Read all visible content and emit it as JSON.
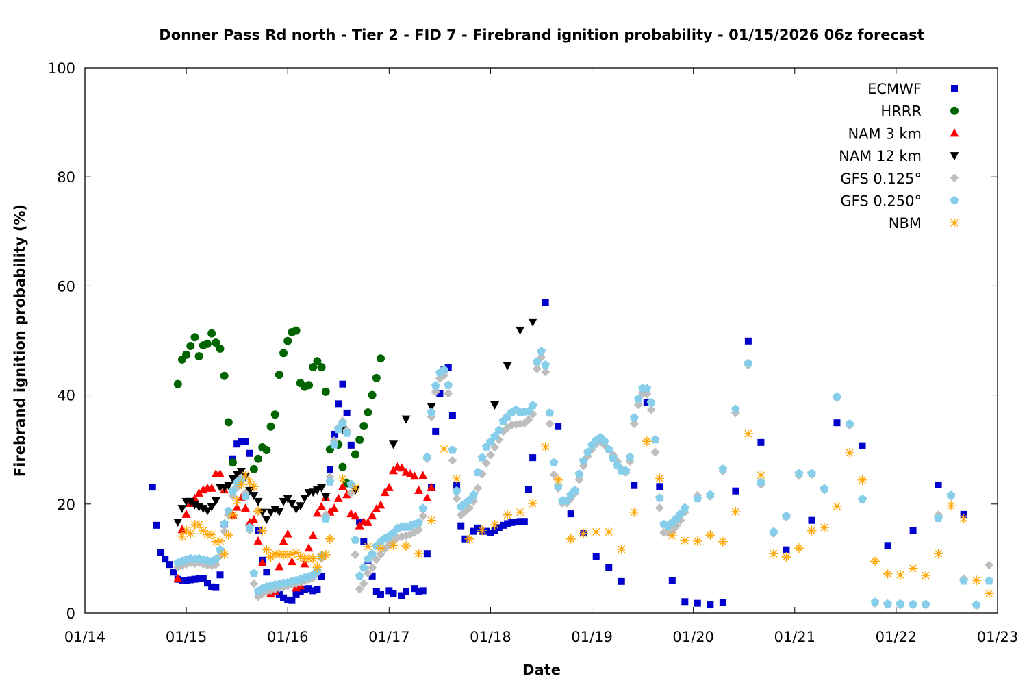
{
  "chart_data": {
    "type": "scatter",
    "title": "Donner Pass Rd north - Tier 2 - FID 7 - Firebrand ignition probability - 01/15/2026 06z forecast",
    "xlabel": "Date",
    "ylabel": "Firebrand ignition probability (%)",
    "xlim": [
      "01/14 00:00",
      "01/23 00:00"
    ],
    "ylim": [
      0,
      100
    ],
    "x_ticks": [
      "01/14",
      "01/15",
      "01/16",
      "01/17",
      "01/18",
      "01/19",
      "01/20",
      "01/21",
      "01/22",
      "01/23"
    ],
    "y_ticks": [
      0,
      20,
      40,
      60,
      80,
      100
    ],
    "grid": false,
    "legend_position": "top-right",
    "series": [
      {
        "name": "ECMWF",
        "marker": "square",
        "color": "#0000cc",
        "segments": [
          {
            "start": "01/14 16:00",
            "step_hours": 1,
            "values": [
              23.1,
              16.1,
              11.1,
              9.9,
              8.9,
              7.5,
              6.2,
              5.9,
              6.0,
              6.1,
              6.2,
              6.3,
              6.4,
              5.5,
              4.8,
              4.7,
              7.0,
              16.3,
              null,
              28.3,
              31.0,
              31.4,
              31.5,
              29.3,
              null,
              15.1,
              9.7,
              7.5,
              3.8,
              4.0,
              3.4,
              2.8,
              2.4,
              2.3,
              3.4,
              4.0,
              4.4,
              4.5,
              4.1,
              4.3,
              6.7,
              null,
              26.3,
              32.8,
              38.4,
              42.0,
              36.7,
              30.8,
              null,
              16.7,
              13.1,
              9.7,
              6.8,
              4.0,
              3.4,
              null,
              4.1,
              3.6,
              null,
              3.2,
              3.9,
              null,
              4.5,
              4.0,
              4.1,
              10.9,
              23.0,
              33.3,
              40.2,
              44.6,
              45.1,
              36.3,
              23.4,
              16.0,
              13.6,
              null,
              15.0,
              15.6,
              15.0,
              15.0,
              14.7,
              15.1,
              15.7,
              16.1,
              16.4,
              16.6,
              16.7,
              16.8,
              16.8,
              22.7,
              28.5
            ]
          },
          {
            "start": "01/18 13:00",
            "step_hours": 3,
            "values": [
              57.0,
              34.2,
              18.2,
              14.7,
              10.3,
              8.4,
              5.8,
              23.4,
              38.7,
              23.2,
              5.9,
              2.1,
              1.8,
              1.5,
              1.9,
              22.4,
              49.9,
              31.3
            ]
          },
          {
            "start": "01/20 22:00",
            "step_hours": 6,
            "values": [
              11.6,
              17.0,
              34.9,
              30.7,
              12.4,
              15.1,
              23.5,
              18.1
            ]
          }
        ]
      },
      {
        "name": "HRRR",
        "marker": "circle",
        "color": "#006400",
        "segments": [
          {
            "start": "01/14 22:00",
            "step_hours": 1,
            "values": [
              42.0,
              46.5,
              47.4,
              49.0,
              50.6,
              47.1,
              49.1,
              49.4,
              51.3,
              49.6,
              48.5,
              43.5,
              35.0,
              27.6,
              null,
              null,
              null,
              null,
              26.4,
              28.3,
              30.4,
              29.9,
              34.2,
              36.4,
              43.7,
              47.7,
              49.9,
              51.5,
              51.8,
              42.2,
              41.5,
              41.8,
              45.1,
              46.2,
              45.1,
              40.6,
              30.0,
              null,
              30.9,
              26.8,
              23.8,
              null,
              29.1,
              31.8,
              34.3,
              36.8,
              40.0,
              43.1,
              46.7
            ]
          }
        ]
      },
      {
        "name": "NAM 3 km",
        "marker": "triangle-up",
        "color": "#ff0000",
        "segments": [
          {
            "start": "01/14 22:00",
            "step_hours": 1,
            "values": [
              6.3,
              15.3,
              18.1,
              20.1,
              21.0,
              22.0,
              22.6,
              22.9,
              22.9,
              25.5,
              25.5,
              22.6,
              18.5,
              18.0,
              19.4,
              21.1,
              19.2,
              16.6,
              17.1,
              13.2,
              9.2,
              null,
              3.5,
              4.0,
              8.5,
              13.1,
              14.5,
              9.4,
              4.6,
              5.0,
              9.0,
              11.9,
              14.2,
              18.3,
              19.5,
              21.2,
              18.5,
              19.2,
              21.0,
              23.2,
              21.7,
              18.2,
              17.8,
              16.0,
              16.7,
              16.6,
              17.8,
              19.1,
              19.8,
              22.1,
              23.0,
              26.1,
              26.8,
              26.6,
              25.8,
              25.5,
              25.1,
              22.5,
              25.2,
              21.1,
              23.0
            ]
          }
        ]
      },
      {
        "name": "NAM 12 km",
        "marker": "triangle-down",
        "color": "#000000",
        "segments": [
          {
            "start": "01/14 22:00",
            "step_hours": 1,
            "values": [
              16.7,
              19.2,
              20.5,
              20.5,
              19.9,
              19.5,
              19.2,
              18.8,
              19.5,
              20.6,
              23.1,
              23.0,
              23.4,
              24.7,
              25.5,
              26.0,
              25.1,
              22.5,
              21.6,
              20.5,
              18.5,
              17.2,
              18.5,
              19.1,
              18.6,
              20.5,
              21.0,
              20.1,
              19.1,
              19.7,
              21.1,
              22.1,
              22.2,
              22.6,
              23.0,
              21.4
            ]
          },
          {
            "start": "01/16 13:00",
            "step_hours": 3,
            "values": [
              33.7,
              22.6,
              null,
              null,
              31.0,
              35.6,
              null,
              37.9,
              null,
              null,
              null,
              null,
              38.2,
              45.4,
              51.9,
              53.4
            ]
          }
        ]
      },
      {
        "name": "GFS 0.125°",
        "marker": "diamond",
        "color": "#bebebe",
        "segments": [
          {
            "start": "01/14 22:00",
            "step_hours": 1,
            "values": [
              8.4,
              8.7,
              9.0,
              9.2,
              9.1,
              9.2,
              9.0,
              8.8,
              8.7,
              8.9,
              10.5,
              15.0,
              18.0,
              21.5,
              23.0,
              24.8,
              22.0,
              15.2,
              5.4,
              3.0,
              3.5,
              3.9,
              4.2,
              4.4,
              4.6,
              4.8,
              5.0,
              5.2,
              5.4,
              5.6,
              5.9,
              6.2,
              6.5,
              7.4,
              10.0,
              18.0,
              25.0,
              31.6,
              34.0,
              35.2,
              33.5,
              22.0,
              10.7,
              4.4,
              5.4,
              7.3,
              8.3,
              9.8,
              10.8,
              11.8,
              12.6,
              13.4,
              13.8,
              14.0,
              14.2,
              14.4,
              14.8,
              15.3,
              17.8,
              28.3,
              36.0,
              40.6,
              43.0,
              43.6,
              40.3,
              28.0,
              21.0,
              18.0,
              18.6,
              19.3,
              20.5,
              22.9,
              25.5,
              27.5,
              29.0,
              30.4,
              31.8,
              33.3,
              34.0,
              34.5,
              34.6,
              34.7,
              34.8,
              35.5,
              36.5,
              44.8,
              46.9,
              44.2,
              34.7,
              25.4,
              22.9,
              20.2,
              20.2,
              21.0,
              22.0,
              24.5,
              27.0,
              28.8,
              30.0,
              31.0,
              31.6,
              30.8,
              30.0,
              29.0,
              27.8,
              26.4,
              25.8,
              27.8,
              34.7,
              38.2,
              40.3,
              40.2,
              37.3,
              29.5,
              19.3,
              14.8,
              14.7,
              15.2,
              16.0,
              17.0,
              18.5
            ]
          },
          {
            "start": "01/20 01:00",
            "step_hours": 3,
            "values": [
              21.6,
              21.4,
              26.0,
              36.7,
              45.5,
              23.6,
              14.6,
              17.6,
              25.2,
              25.4,
              22.6,
              39.5,
              34.4,
              20.8,
              1.8,
              1.6,
              1.5,
              1.5,
              1.5,
              18.0,
              21.4,
              6.3,
              1.4,
              8.8
            ]
          }
        ]
      },
      {
        "name": "GFS 0.250°",
        "marker": "pentagon",
        "color": "#87ceeb",
        "segments": [
          {
            "start": "01/14 22:00",
            "step_hours": 1,
            "values": [
              9.2,
              9.5,
              9.8,
              10.0,
              9.9,
              10.0,
              9.8,
              9.6,
              9.5,
              9.9,
              11.6,
              16.4,
              18.7,
              22.4,
              23.9,
              24.4,
              21.4,
              15.7,
              7.3,
              4.0,
              4.5,
              4.8,
              5.0,
              5.2,
              5.3,
              5.5,
              5.6,
              5.8,
              6.0,
              6.2,
              6.5,
              6.7,
              7.0,
              7.8,
              10.5,
              17.3,
              24.1,
              30.9,
              33.7,
              34.8,
              33.0,
              23.6,
              13.4,
              6.8,
              8.3,
              9.9,
              10.8,
              12.3,
              13.1,
              13.7,
              14.1,
              14.7,
              15.5,
              15.8,
              15.8,
              16.0,
              16.3,
              16.6,
              19.2,
              28.6,
              36.8,
              41.7,
              44.1,
              44.6,
              41.8,
              29.9,
              22.4,
              19.5,
              20.1,
              20.7,
              21.7,
              25.8,
              28.5,
              30.5,
              31.4,
              32.4,
              33.5,
              35.2,
              36.0,
              36.8,
              37.3,
              36.8,
              36.9,
              37.0,
              38.1,
              46.1,
              48.0,
              45.5,
              36.7,
              27.6,
              23.2,
              20.6,
              20.6,
              21.7,
              22.5,
              25.5,
              27.9,
              29.5,
              30.8,
              31.7,
              32.2,
              31.5,
              30.0,
              28.4,
              27.1,
              26.1,
              26.1,
              28.6,
              35.8,
              39.3,
              41.2,
              41.2,
              38.6,
              31.8,
              21.1,
              16.3,
              16.0,
              16.6,
              17.3,
              18.2,
              19.3
            ]
          },
          {
            "start": "01/20 01:00",
            "step_hours": 3,
            "values": [
              21.0,
              21.7,
              26.4,
              37.4,
              45.8,
              24.0,
              14.9,
              17.8,
              25.6,
              25.6,
              22.8,
              39.7,
              34.7,
              20.9,
              2.0,
              1.7,
              1.7,
              1.6,
              1.6,
              17.4,
              21.6,
              5.9,
              1.5,
              5.9
            ]
          }
        ]
      },
      {
        "name": "NBM",
        "marker": "asterisk",
        "color": "#ffa500",
        "segments": [
          {
            "start": "01/14 23:00",
            "step_hours": 1,
            "values": [
              14.1,
              15.2,
              14.6,
              16.2,
              16.2,
              15.1,
              14.4,
              14.4,
              13.1,
              13.2,
              10.8,
              14.3,
              18.0,
              20.6,
              23.6,
              25.3,
              24.1,
              23.2,
              18.7,
              15.1,
              11.6,
              10.3,
              10.9,
              10.8,
              10.7,
              10.7,
              10.8,
              11.1,
              10.4,
              10.0,
              10.0,
              10.0,
              8.4,
              10.4,
              10.7,
              13.6
            ]
          },
          {
            "start": "01/16 13:00",
            "step_hours": 3,
            "values": [
              24.6,
              22.9,
              12.2,
              11.9,
              12.4,
              12.3,
              10.9,
              17.0,
              30.1,
              24.6,
              13.6,
              15.2,
              16.2,
              18.0,
              18.5,
              20.1,
              30.5,
              24.4,
              13.6,
              14.6,
              14.9,
              14.9,
              11.7,
              18.5,
              31.5,
              24.7,
              14.2,
              13.3,
              13.2,
              14.3,
              13.1,
              18.6,
              32.9,
              25.3,
              10.9,
              10.3,
              11.9,
              15.1,
              15.7,
              19.6,
              29.4,
              24.4,
              9.5,
              7.2,
              7.0,
              8.2,
              6.9,
              10.9,
              19.7,
              17.3,
              6.0,
              3.6
            ]
          }
        ]
      }
    ]
  }
}
